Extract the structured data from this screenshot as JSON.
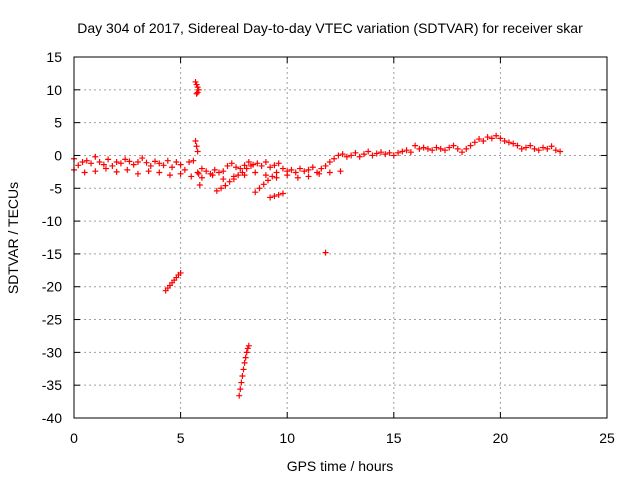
{
  "chart_data": {
    "type": "scatter",
    "title": "Day 304 of 2017, Sidereal Day-to-day VTEC variation (SDTVAR) for receiver skar",
    "xlabel": "GPS time / hours",
    "ylabel": "SDTVAR / TECUs",
    "xlim": [
      0,
      25
    ],
    "ylim": [
      -40,
      15
    ],
    "xticks": [
      0,
      5,
      10,
      15,
      20,
      25
    ],
    "yticks": [
      15,
      10,
      5,
      0,
      -5,
      -10,
      -15,
      -20,
      -25,
      -30,
      -35,
      -40
    ],
    "grid": true,
    "marker": "+",
    "color": "#ff0000",
    "series": [
      {
        "name": "main band",
        "x": [
          0.0,
          0.2,
          0.4,
          0.6,
          0.8,
          1.0,
          1.2,
          1.4,
          1.6,
          1.8,
          2.0,
          2.2,
          2.4,
          2.6,
          2.8,
          3.0,
          3.2,
          3.4,
          3.6,
          3.8,
          4.0,
          4.2,
          4.4,
          4.6,
          4.8,
          5.0,
          5.2,
          5.4,
          5.6,
          5.8,
          6.0,
          6.2,
          6.4,
          6.6,
          6.8,
          7.0,
          7.2,
          7.4,
          7.6,
          7.8,
          8.0,
          8.2,
          8.4,
          8.6,
          8.8,
          9.0,
          9.2,
          9.4,
          9.6,
          9.8,
          10.0,
          10.2,
          10.4,
          10.6,
          10.8,
          11.0,
          11.2,
          11.4,
          11.6,
          11.8,
          12.0,
          12.2,
          12.4,
          12.6,
          12.8,
          13.0,
          13.2,
          13.4,
          13.6,
          13.8,
          14.0,
          14.2,
          14.4,
          14.6,
          14.8,
          15.0,
          15.2,
          15.4,
          15.6,
          15.8,
          16.0,
          16.2,
          16.4,
          16.6,
          16.8,
          17.0,
          17.2,
          17.4,
          17.6,
          17.8,
          18.0,
          18.2,
          18.4,
          18.6,
          18.8,
          19.0,
          19.2,
          19.4,
          19.6,
          19.8,
          20.0,
          20.2,
          20.4,
          20.6,
          20.8,
          21.0,
          21.2,
          21.4,
          21.6,
          21.8,
          22.0,
          22.2,
          22.4,
          22.6,
          22.8
        ],
        "y": [
          -0.5,
          -1.5,
          -1.0,
          -0.8,
          -1.2,
          -0.2,
          -1.0,
          -1.4,
          -0.6,
          -1.6,
          -1.0,
          -1.2,
          -0.6,
          -0.9,
          -1.4,
          -1.0,
          -0.4,
          -1.1,
          -1.6,
          -0.9,
          -1.2,
          -1.5,
          -0.8,
          -1.8,
          -1.0,
          -1.4,
          -2.2,
          -1.0,
          -0.8,
          -2.6,
          -2.0,
          -2.4,
          -2.8,
          -2.2,
          -2.6,
          -2.4,
          -1.6,
          -1.2,
          -1.8,
          -2.0,
          -1.5,
          -1.0,
          -1.4,
          -1.2,
          -1.6,
          -1.0,
          -1.8,
          -1.5,
          -1.2,
          -2.0,
          -2.4,
          -2.2,
          -2.6,
          -2.0,
          -2.4,
          -2.2,
          -1.8,
          -2.6,
          -2.0,
          -1.6,
          -1.0,
          -0.5,
          0.0,
          0.2,
          -0.2,
          0.0,
          0.4,
          -0.2,
          0.2,
          0.6,
          0.0,
          0.3,
          0.5,
          0.2,
          0.4,
          0.0,
          0.4,
          0.6,
          0.8,
          0.5,
          1.5,
          1.0,
          1.2,
          1.0,
          0.8,
          1.2,
          1.0,
          0.8,
          1.2,
          1.5,
          1.0,
          0.5,
          1.0,
          1.5,
          2.0,
          2.5,
          2.2,
          2.8,
          2.6,
          3.0,
          2.6,
          2.2,
          2.0,
          1.8,
          1.5,
          1.0,
          1.2,
          1.5,
          1.0,
          0.8,
          1.2,
          1.0,
          1.4,
          0.8,
          0.6
        ]
      },
      {
        "name": "lower band",
        "x": [
          0.0,
          0.5,
          1.0,
          1.5,
          2.0,
          2.5,
          3.0,
          3.5,
          4.0,
          4.5,
          5.0,
          5.5,
          6.0,
          6.5,
          7.0,
          7.5,
          8.0,
          8.5,
          9.0,
          9.5,
          10.0,
          10.5,
          11.0,
          11.5,
          12.0,
          12.5
        ],
        "y": [
          -2.2,
          -2.6,
          -2.4,
          -2.0,
          -2.5,
          -2.2,
          -2.8,
          -2.4,
          -2.6,
          -3.0,
          -2.8,
          -3.2,
          -3.4,
          -3.0,
          -3.6,
          -3.2,
          -3.0,
          -2.6,
          -3.0,
          -3.4,
          -3.0,
          -3.4,
          -3.2,
          -2.8,
          -2.6,
          -2.4
        ]
      },
      {
        "name": "descending arcs",
        "x": [
          6.7,
          6.9,
          7.1,
          7.3,
          7.5,
          7.7,
          7.9,
          8.1,
          8.3,
          8.5,
          8.7,
          8.9,
          9.1,
          9.3,
          9.5
        ],
        "y": [
          -5.4,
          -5.0,
          -4.6,
          -4.0,
          -3.6,
          -3.0,
          -2.6,
          -2.0,
          -1.6,
          -5.6,
          -5.0,
          -4.4,
          -3.8,
          -3.2,
          -2.6
        ]
      },
      {
        "name": "segment near -6",
        "x": [
          9.2,
          9.4,
          9.6,
          9.8
        ],
        "y": [
          -6.4,
          -6.2,
          -6.0,
          -5.8
        ]
      },
      {
        "name": "near 10 at 5.8h",
        "x": [
          5.7,
          5.75,
          5.8,
          5.85,
          5.8,
          5.75
        ],
        "y": [
          11.2,
          10.8,
          10.4,
          10.0,
          9.6,
          9.4
        ]
      },
      {
        "name": "spike at 5.8h",
        "x": [
          5.7,
          5.75,
          5.8,
          5.85,
          5.9
        ],
        "y": [
          2.2,
          1.4,
          0.6,
          -2.8,
          -4.5
        ]
      },
      {
        "name": "isolated point",
        "x": [
          11.8
        ],
        "y": [
          -14.8
        ]
      },
      {
        "name": "segment near -20",
        "x": [
          4.3,
          4.4,
          4.5,
          4.6,
          4.7,
          4.8,
          4.9,
          5.0
        ],
        "y": [
          -20.6,
          -20.2,
          -19.8,
          -19.4,
          -19.0,
          -18.6,
          -18.2,
          -17.9
        ]
      },
      {
        "name": "segment near -33",
        "x": [
          7.75,
          7.8,
          7.85,
          7.9,
          7.95,
          8.0,
          8.05,
          8.1,
          8.15,
          8.2
        ],
        "y": [
          -36.6,
          -35.6,
          -34.6,
          -33.6,
          -32.6,
          -31.6,
          -30.8,
          -30.0,
          -29.4,
          -29.0
        ]
      }
    ]
  }
}
